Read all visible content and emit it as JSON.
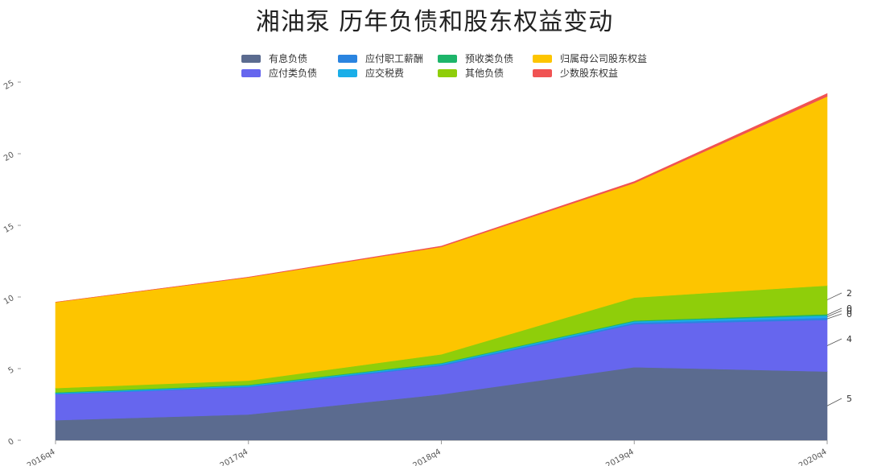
{
  "chart_data": {
    "type": "area",
    "stacked": true,
    "title": "湘油泵  历年负债和股东权益变动",
    "xlabel": "",
    "ylabel": "",
    "categories": [
      "2016q4",
      "2017q4",
      "2018q4",
      "2019q4",
      "2020q4"
    ],
    "y_ticks": [
      "0",
      "5",
      "10",
      "15",
      "20",
      "25"
    ],
    "ylim": [
      0,
      25
    ],
    "legend_position": "top",
    "series": [
      {
        "name": "有息负债",
        "color": "#5b6b8f",
        "values": [
          1.4,
          1.8,
          3.2,
          5.1,
          4.8
        ]
      },
      {
        "name": "应付类负债",
        "color": "#6666ee",
        "values": [
          1.8,
          1.9,
          2.0,
          3.0,
          3.6
        ]
      },
      {
        "name": "应付职工薪酬",
        "color": "#2a84e0",
        "values": [
          0.05,
          0.06,
          0.08,
          0.1,
          0.15
        ]
      },
      {
        "name": "应交税费",
        "color": "#1aaee8",
        "values": [
          0.05,
          0.06,
          0.07,
          0.1,
          0.15
        ]
      },
      {
        "name": "预收类负债",
        "color": "#1db56a",
        "values": [
          0.04,
          0.05,
          0.05,
          0.06,
          0.1
        ]
      },
      {
        "name": "其他负债",
        "color": "#8fce0a",
        "values": [
          0.3,
          0.3,
          0.6,
          1.6,
          2.0
        ]
      },
      {
        "name": "归属母公司股东权益",
        "color": "#fdc500",
        "values": [
          6.0,
          7.2,
          7.5,
          8.0,
          13.2
        ]
      },
      {
        "name": "少数股东权益",
        "color": "#f05353",
        "values": [
          0.0,
          0.02,
          0.05,
          0.1,
          0.2
        ]
      }
    ],
    "end_labels": [
      {
        "text": "5",
        "series_index": 0
      },
      {
        "text": "4",
        "series_index": 1
      },
      {
        "text": "0",
        "series_index": 2
      },
      {
        "text": "0",
        "series_index": 3
      },
      {
        "text": "0",
        "series_index": 4
      },
      {
        "text": "2",
        "series_index": 5
      }
    ]
  }
}
